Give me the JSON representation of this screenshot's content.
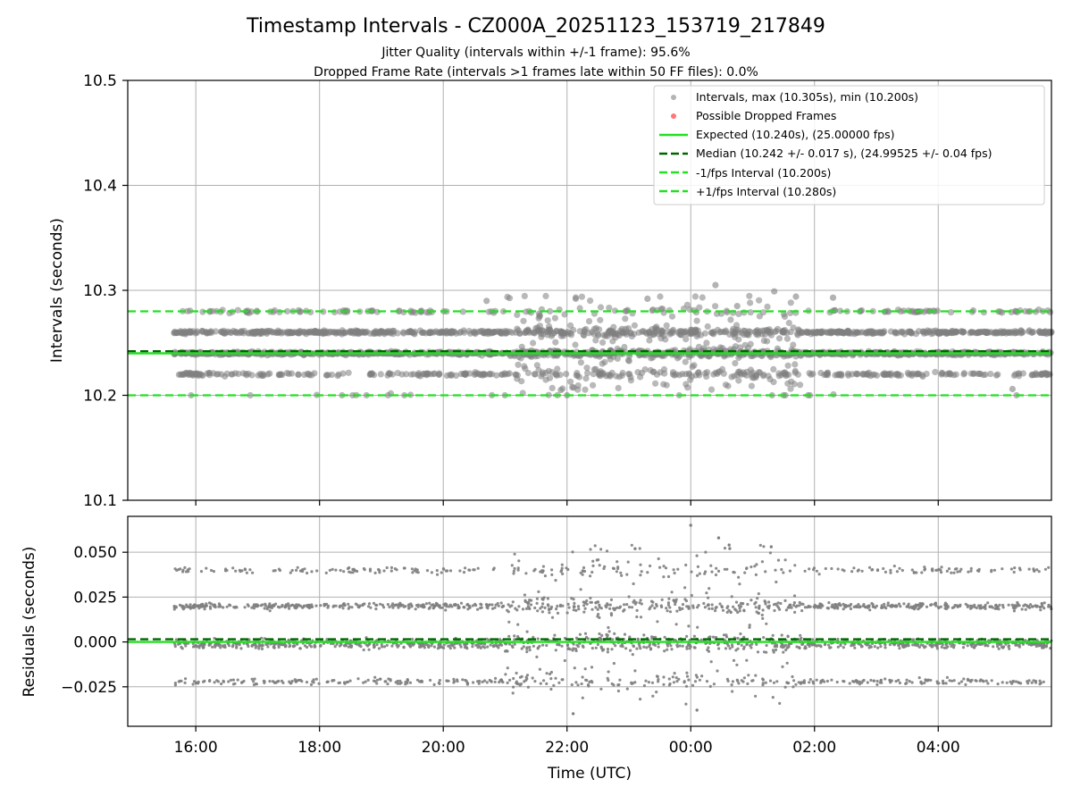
{
  "colors": {
    "points": "#808080",
    "dropped": "#ff5555",
    "expected": "#22e022",
    "median": "#006400",
    "bounds": "#22e022",
    "grid": "#b0b0b0"
  },
  "chart_data": [
    {
      "type": "scatter",
      "panel": "intervals",
      "title": "Timestamp Intervals - CZ000A_20251123_153719_217849",
      "subtitle_lines": [
        "Jitter Quality (intervals within +/-1 frame): 95.6%",
        "Dropped Frame Rate (intervals >1 frames late within 50 FF files): 0.0%"
      ],
      "xlabel": "",
      "ylabel": "Intervals (seconds)",
      "xlim_hours": [
        14.9,
        29.83
      ],
      "ylim": [
        10.1,
        10.5
      ],
      "x_ticks": [
        {
          "value": 16,
          "label": "16:00"
        },
        {
          "value": 18,
          "label": "18:00"
        },
        {
          "value": 20,
          "label": "20:00"
        },
        {
          "value": 22,
          "label": "22:00"
        },
        {
          "value": 24,
          "label": "00:00"
        },
        {
          "value": 26,
          "label": "02:00"
        },
        {
          "value": 28,
          "label": "04:00"
        }
      ],
      "y_ticks": [
        {
          "value": 10.1,
          "label": "10.1"
        },
        {
          "value": 10.2,
          "label": "10.2"
        },
        {
          "value": 10.3,
          "label": "10.3"
        },
        {
          "value": 10.4,
          "label": "10.4"
        },
        {
          "value": 10.5,
          "label": "10.5"
        }
      ],
      "data_start_hour": 15.65,
      "data_end_hour": 29.83,
      "interval_clusters": [
        10.2,
        10.22,
        10.24,
        10.26,
        10.28
      ],
      "interval_max": 10.305,
      "interval_min": 10.2,
      "reference_lines": [
        {
          "name": "expected",
          "value": 10.24,
          "style": "solid"
        },
        {
          "name": "median",
          "value": 10.242,
          "style": "dashed"
        },
        {
          "name": "minus_one_fps",
          "value": 10.2,
          "style": "dashed"
        },
        {
          "name": "plus_one_fps",
          "value": 10.28,
          "style": "dashed"
        }
      ],
      "legend": {
        "position": "top-right",
        "entries": [
          {
            "kind": "marker",
            "color_key": "points",
            "label": "Intervals, max (10.305s), min (10.200s)"
          },
          {
            "kind": "marker",
            "color_key": "dropped",
            "label": "Possible Dropped Frames"
          },
          {
            "kind": "line",
            "color_key": "expected",
            "dash": false,
            "label": "Expected (10.240s), (25.00000 fps)"
          },
          {
            "kind": "line",
            "color_key": "median",
            "dash": true,
            "label": "Median (10.242 +/- 0.017 s), (24.99525 +/- 0.04 fps)"
          },
          {
            "kind": "line",
            "color_key": "bounds",
            "dash": true,
            "label": "-1/fps Interval (10.200s)"
          },
          {
            "kind": "line",
            "color_key": "bounds",
            "dash": true,
            "label": "+1/fps Interval (10.280s)"
          }
        ]
      }
    },
    {
      "type": "scatter",
      "panel": "residuals",
      "xlabel": "Time (UTC)",
      "ylabel": "Residuals (seconds)",
      "xlim_hours": [
        14.9,
        29.83
      ],
      "ylim": [
        -0.047,
        0.07
      ],
      "x_ticks": [
        {
          "value": 16,
          "label": "16:00"
        },
        {
          "value": 18,
          "label": "18:00"
        },
        {
          "value": 20,
          "label": "20:00"
        },
        {
          "value": 22,
          "label": "22:00"
        },
        {
          "value": 24,
          "label": "00:00"
        },
        {
          "value": 26,
          "label": "02:00"
        },
        {
          "value": 28,
          "label": "04:00"
        }
      ],
      "y_ticks": [
        {
          "value": 0.05,
          "label": "0.050"
        },
        {
          "value": 0.025,
          "label": "0.025"
        },
        {
          "value": 0.0,
          "label": "0.000"
        },
        {
          "value": -0.025,
          "label": "−0.025"
        }
      ],
      "residual_clusters": [
        -0.022,
        -0.002,
        0.0,
        0.02,
        0.04
      ],
      "residual_max": 0.065,
      "residual_min": -0.04,
      "reference_lines": [
        {
          "name": "zero",
          "value": 0.0,
          "style": "solid"
        },
        {
          "name": "median_offset",
          "value": 0.0015,
          "style": "dashed"
        }
      ]
    }
  ]
}
